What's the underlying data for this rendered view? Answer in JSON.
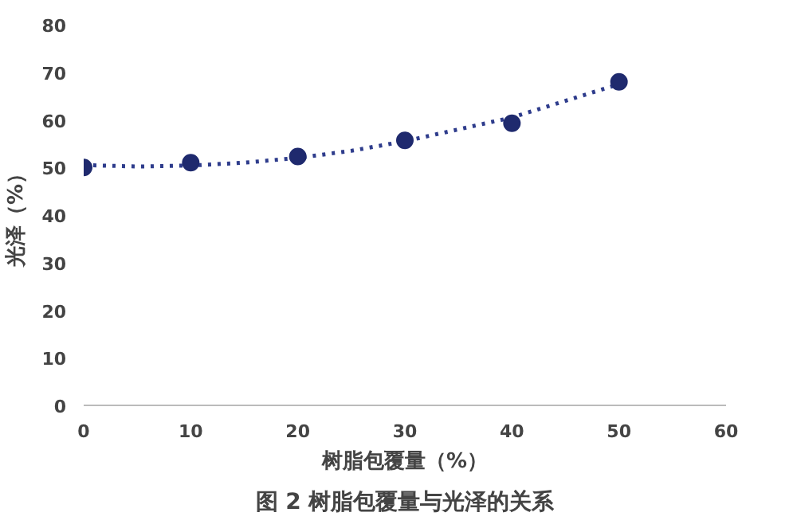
{
  "chart_data": {
    "type": "scatter",
    "xlabel": "树脂包覆量（%）",
    "ylabel": "光泽（%）",
    "annotations": [
      "图 2 树脂包覆量与光泽的关系"
    ],
    "series": [
      {
        "type": "line",
        "color": "#2e3c8c",
        "line_style": "dotted",
        "x": [
          0,
          5,
          10,
          15,
          20,
          25,
          30,
          35,
          40,
          45,
          50
        ],
        "values": [
          50.5,
          50.2,
          50.4,
          51,
          52,
          53.5,
          55.5,
          58,
          60.5,
          64,
          67.5
        ]
      },
      {
        "color": "#1f2a6e",
        "marker": "circle",
        "x": [
          0,
          10,
          20,
          30,
          40,
          50
        ],
        "values": [
          50,
          51,
          52.3,
          55.7,
          59.3,
          68
        ]
      }
    ],
    "xlim": [
      0,
      60
    ],
    "ylim": [
      0,
      80
    ],
    "xticks": [
      0,
      10,
      20,
      30,
      40,
      50,
      60
    ],
    "yticks": [
      0,
      10,
      20,
      30,
      40,
      50,
      60,
      70,
      80
    ],
    "grid": false
  }
}
